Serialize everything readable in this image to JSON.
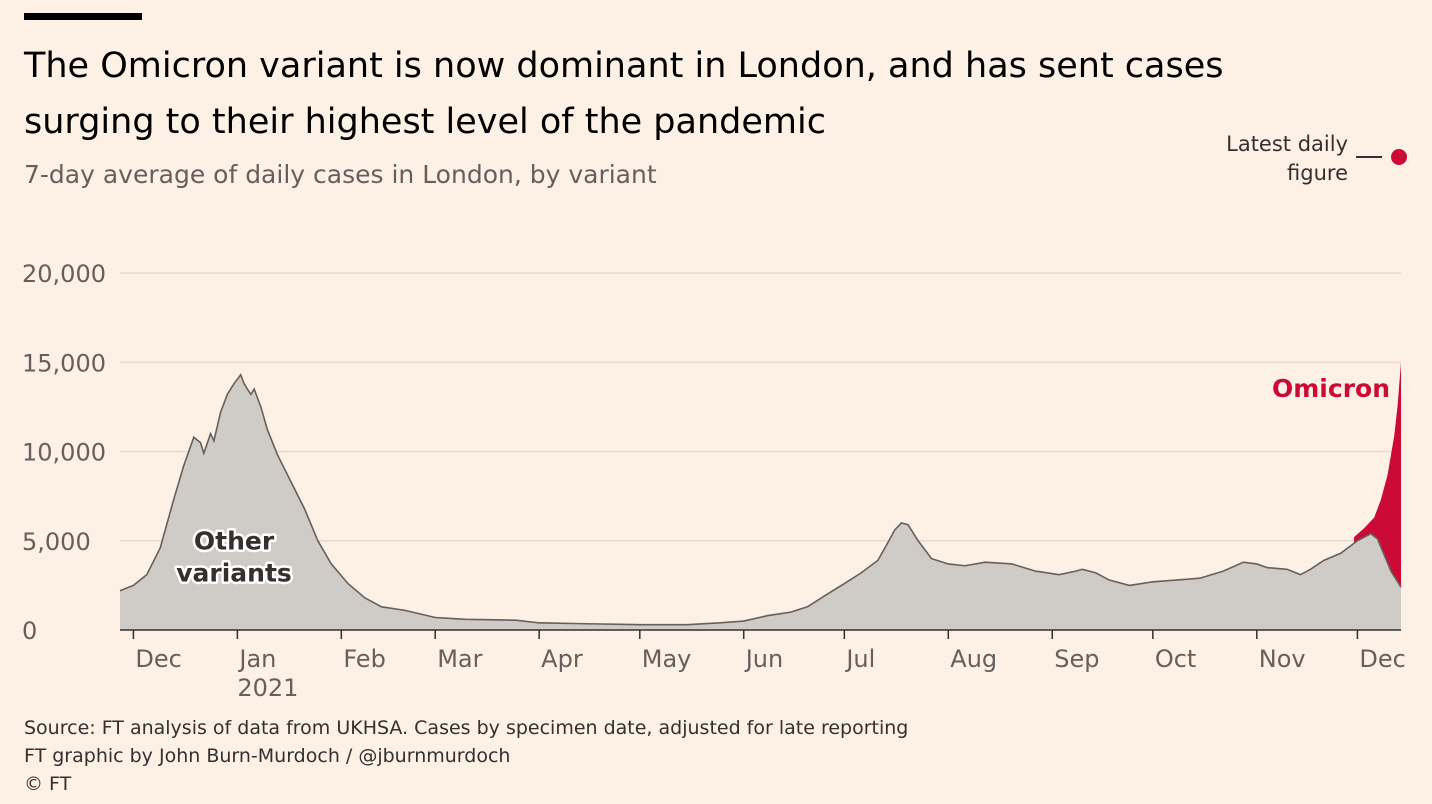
{
  "header": {
    "title": "The Omicron variant is now dominant in London, and has sent cases surging to their highest level of the pandemic",
    "subtitle": "7-day average of daily cases in London, by variant"
  },
  "legend": {
    "latest_label_line1": "Latest daily",
    "latest_label_line2": "figure"
  },
  "footer": {
    "source": "Source: FT analysis of data from UKHSA. Cases by specimen date, adjusted for late reporting",
    "credit": "FT graphic by John Burn-Murdoch / @jburnmurdoch",
    "copyright": "© FT"
  },
  "colors": {
    "background": "#fdf1e6",
    "other_fill": "#cfcbc7",
    "other_line": "#66605c",
    "omicron": "#cc0a36",
    "grid": "#e6d9ce",
    "axis": "#33302e"
  },
  "chart_data": {
    "type": "area",
    "title": "The Omicron variant is now dominant in London, and has sent cases surging to their highest level of the pandemic",
    "subtitle": "7-day average of daily cases in London, by variant",
    "ylim": [
      0,
      20000
    ],
    "y_ticks": [
      0,
      5000,
      10000,
      15000,
      20000
    ],
    "y_tick_labels": [
      "0",
      "5,000",
      "10,000",
      "15,000",
      "20,000"
    ],
    "x_ticks": [
      {
        "date": "2020-12-01",
        "label": "Dec",
        "sublabel": ""
      },
      {
        "date": "2021-01-01",
        "label": "Jan",
        "sublabel": "2021"
      },
      {
        "date": "2021-02-01",
        "label": "Feb",
        "sublabel": ""
      },
      {
        "date": "2021-03-01",
        "label": "Mar",
        "sublabel": ""
      },
      {
        "date": "2021-04-01",
        "label": "Apr",
        "sublabel": ""
      },
      {
        "date": "2021-05-01",
        "label": "May",
        "sublabel": ""
      },
      {
        "date": "2021-06-01",
        "label": "Jun",
        "sublabel": ""
      },
      {
        "date": "2021-07-01",
        "label": "Jul",
        "sublabel": ""
      },
      {
        "date": "2021-08-01",
        "label": "Aug",
        "sublabel": ""
      },
      {
        "date": "2021-09-01",
        "label": "Sep",
        "sublabel": ""
      },
      {
        "date": "2021-10-01",
        "label": "Oct",
        "sublabel": ""
      },
      {
        "date": "2021-11-01",
        "label": "Nov",
        "sublabel": ""
      },
      {
        "date": "2021-12-01",
        "label": "Dec",
        "sublabel": ""
      }
    ],
    "x_range": [
      "2020-11-27",
      "2021-12-14"
    ],
    "series": [
      {
        "name": "Other variants",
        "label_line1": "Other",
        "label_line2": "variants",
        "label_at": {
          "date": "2020-12-31",
          "value": 4500
        },
        "points": [
          [
            "2020-11-27",
            2200
          ],
          [
            "2020-12-01",
            2500
          ],
          [
            "2020-12-05",
            3100
          ],
          [
            "2020-12-09",
            4600
          ],
          [
            "2020-12-13",
            7300
          ],
          [
            "2020-12-16",
            9200
          ],
          [
            "2020-12-19",
            10800
          ],
          [
            "2020-12-21",
            10500
          ],
          [
            "2020-12-22",
            9900
          ],
          [
            "2020-12-24",
            11000
          ],
          [
            "2020-12-25",
            10600
          ],
          [
            "2020-12-27",
            12200
          ],
          [
            "2020-12-29",
            13200
          ],
          [
            "2020-12-31",
            13800
          ],
          [
            "2021-01-02",
            14300
          ],
          [
            "2021-01-03",
            13800
          ],
          [
            "2021-01-05",
            13200
          ],
          [
            "2021-01-06",
            13500
          ],
          [
            "2021-01-08",
            12500
          ],
          [
            "2021-01-10",
            11200
          ],
          [
            "2021-01-13",
            9800
          ],
          [
            "2021-01-17",
            8300
          ],
          [
            "2021-01-21",
            6800
          ],
          [
            "2021-01-25",
            5000
          ],
          [
            "2021-01-29",
            3700
          ],
          [
            "2021-02-03",
            2600
          ],
          [
            "2021-02-08",
            1800
          ],
          [
            "2021-02-13",
            1300
          ],
          [
            "2021-02-20",
            1100
          ],
          [
            "2021-03-01",
            700
          ],
          [
            "2021-03-10",
            600
          ],
          [
            "2021-03-25",
            550
          ],
          [
            "2021-04-01",
            400
          ],
          [
            "2021-04-15",
            350
          ],
          [
            "2021-05-01",
            300
          ],
          [
            "2021-05-15",
            300
          ],
          [
            "2021-05-25",
            400
          ],
          [
            "2021-06-01",
            500
          ],
          [
            "2021-06-08",
            800
          ],
          [
            "2021-06-15",
            1000
          ],
          [
            "2021-06-20",
            1300
          ],
          [
            "2021-06-25",
            1900
          ],
          [
            "2021-07-01",
            2600
          ],
          [
            "2021-07-06",
            3200
          ],
          [
            "2021-07-11",
            3900
          ],
          [
            "2021-07-14",
            4900
          ],
          [
            "2021-07-16",
            5600
          ],
          [
            "2021-07-18",
            6000
          ],
          [
            "2021-07-20",
            5900
          ],
          [
            "2021-07-23",
            5000
          ],
          [
            "2021-07-27",
            4000
          ],
          [
            "2021-08-01",
            3700
          ],
          [
            "2021-08-06",
            3600
          ],
          [
            "2021-08-12",
            3800
          ],
          [
            "2021-08-20",
            3700
          ],
          [
            "2021-08-27",
            3300
          ],
          [
            "2021-09-03",
            3100
          ],
          [
            "2021-09-08",
            3300
          ],
          [
            "2021-09-10",
            3400
          ],
          [
            "2021-09-14",
            3200
          ],
          [
            "2021-09-18",
            2800
          ],
          [
            "2021-09-24",
            2500
          ],
          [
            "2021-10-01",
            2700
          ],
          [
            "2021-10-08",
            2800
          ],
          [
            "2021-10-15",
            2900
          ],
          [
            "2021-10-22",
            3300
          ],
          [
            "2021-10-28",
            3800
          ],
          [
            "2021-11-01",
            3700
          ],
          [
            "2021-11-04",
            3500
          ],
          [
            "2021-11-10",
            3400
          ],
          [
            "2021-11-14",
            3100
          ],
          [
            "2021-11-17",
            3400
          ],
          [
            "2021-11-21",
            3900
          ],
          [
            "2021-11-26",
            4300
          ],
          [
            "2021-12-01",
            5000
          ],
          [
            "2021-12-05",
            5400
          ],
          [
            "2021-12-07",
            5100
          ],
          [
            "2021-12-09",
            4200
          ],
          [
            "2021-12-11",
            3300
          ],
          [
            "2021-12-14",
            2400
          ]
        ]
      },
      {
        "name": "Omicron",
        "stacked_total_points": [
          [
            "2021-11-30",
            5200
          ],
          [
            "2021-12-03",
            5700
          ],
          [
            "2021-12-06",
            6300
          ],
          [
            "2021-12-08",
            7300
          ],
          [
            "2021-12-10",
            8700
          ],
          [
            "2021-12-12",
            10900
          ],
          [
            "2021-12-13",
            12600
          ],
          [
            "2021-12-14",
            15000
          ]
        ]
      }
    ],
    "latest_daily_figure": {
      "date": "2021-12-14",
      "value": 15000
    }
  }
}
